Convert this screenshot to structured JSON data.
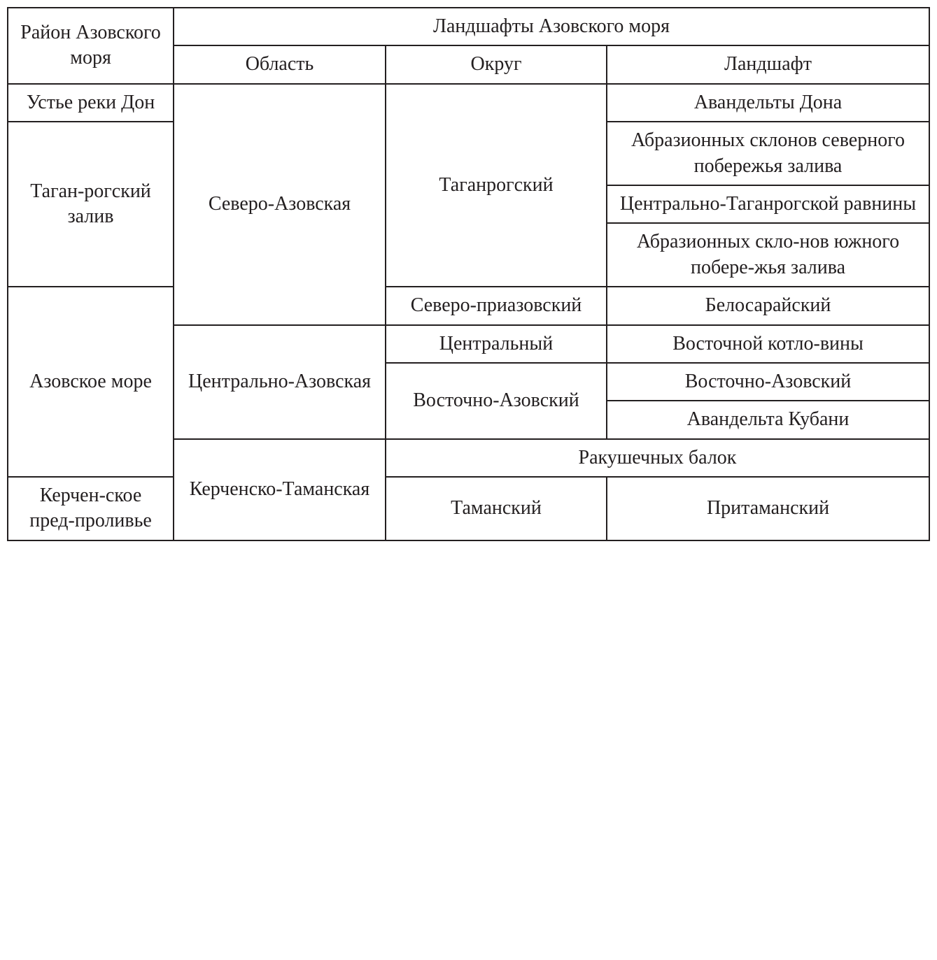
{
  "table": {
    "type": "table",
    "border_color": "#231f20",
    "text_color": "#231f20",
    "background_color": "#ffffff",
    "font_family": "Georgia, Times New Roman, serif",
    "base_fontsize": 28,
    "border_width": 2,
    "column_widths_pct": [
      18,
      23,
      24,
      35
    ],
    "header": {
      "main_row_label": "Район Азовского моря",
      "group_label": "Ландшафты Азовского моря",
      "sub": {
        "oblast": "Область",
        "okrug": "Округ",
        "landscape": "Ландшафт"
      }
    },
    "rows": {
      "r1_district": "Устье реки Дон",
      "r1_landscape": "Авандельты Дона",
      "r2_district": "Таган-рогский залив",
      "r2_oblast": "Северо-Азовская",
      "r2_okrug": "Таганрогский",
      "r2_landscape_a": "Абразионных склонов северного побережья залива",
      "r2_landscape_b": "Центрально-Таганрогской равнины",
      "r2_landscape_c": "Абразионных скло-нов южного побере-жья залива",
      "r3_district": "Азовское море",
      "r3_okrug_a": "Северо-приазовский",
      "r3_landscape_a": "Белосарайский",
      "r3_oblast_b": "Центрально-Азовская",
      "r3_okrug_b": "Центральный",
      "r3_landscape_b": "Восточной котло-вины",
      "r3_okrug_c": "Восточно-Азовский",
      "r3_landscape_c1": "Восточно-Азовский",
      "r3_landscape_c2": "Авандельта Кубани",
      "r3_oblast_d": "Керченско-Таманская",
      "r3_merged_d": "Ракушечных балок",
      "r4_district": "Керчен-ское пред-проливье",
      "r4_okrug": "Таманский",
      "r4_landscape": "Притаманский"
    }
  }
}
